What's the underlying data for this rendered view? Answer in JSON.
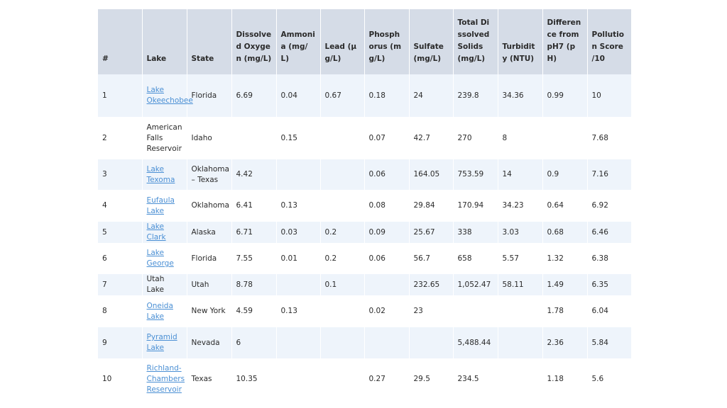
{
  "table": {
    "columns": [
      "#",
      "Lake",
      "State",
      "Dissolved Oxygen (mg/L)",
      "Ammonia (mg/L)",
      "Lead (µg/L)",
      "Phosphorus (mg/L)",
      "Sulfate (mg/L)",
      "Total Dissolved Solids (mg/L)",
      "Turbidity (NTU)",
      "Difference from pH7 (pH)",
      "Pollution Score /10"
    ],
    "rows": [
      [
        "1",
        "Lake Okeechobee",
        "Florida",
        "6.69",
        "0.04",
        "0.67",
        "0.18",
        "24",
        "239.8",
        "34.36",
        "0.99",
        "10"
      ],
      [
        "2",
        "American Falls Reservoir",
        "Idaho",
        null,
        "0.15",
        null,
        "0.07",
        "42.7",
        "270",
        "8",
        null,
        "7.68"
      ],
      [
        "3",
        "Lake Texoma",
        "Oklahoma – Texas",
        "4.42",
        null,
        null,
        "0.06",
        "164.05",
        "753.59",
        "14",
        "0.9",
        "7.16"
      ],
      [
        "4",
        "Eufaula Lake",
        "Oklahoma",
        "6.41",
        "0.13",
        null,
        "0.08",
        "29.84",
        "170.94",
        "34.23",
        "0.64",
        "6.92"
      ],
      [
        "5",
        "Lake Clark",
        "Alaska",
        "6.71",
        "0.03",
        "0.2",
        "0.09",
        "25.67",
        "338",
        "3.03",
        "0.68",
        "6.46"
      ],
      [
        "6",
        "Lake George",
        "Florida",
        "7.55",
        "0.01",
        "0.2",
        "0.06",
        "56.7",
        "658",
        "5.57",
        "1.32",
        "6.38"
      ],
      [
        "7",
        "Utah Lake",
        "Utah",
        "8.78",
        null,
        "0.1",
        null,
        "232.65",
        "1,052.47",
        "58.11",
        "1.49",
        "6.35"
      ],
      [
        "8",
        "Oneida Lake",
        "New York",
        "4.59",
        "0.13",
        null,
        "0.02",
        "23",
        null,
        null,
        "1.78",
        "6.04"
      ],
      [
        "9",
        "Pyramid Lake",
        "Nevada",
        "6",
        null,
        null,
        null,
        null,
        "5,488.44",
        null,
        "2.36",
        "5.84"
      ],
      [
        "10",
        "Richland-Chambers Reservoir",
        "Texas",
        "10.35",
        null,
        null,
        "0.27",
        "29.5",
        "234.5",
        null,
        "1.18",
        "5.6"
      ]
    ],
    "linked": [
      true,
      false,
      true,
      true,
      true,
      true,
      false,
      true,
      true,
      true
    ]
  }
}
